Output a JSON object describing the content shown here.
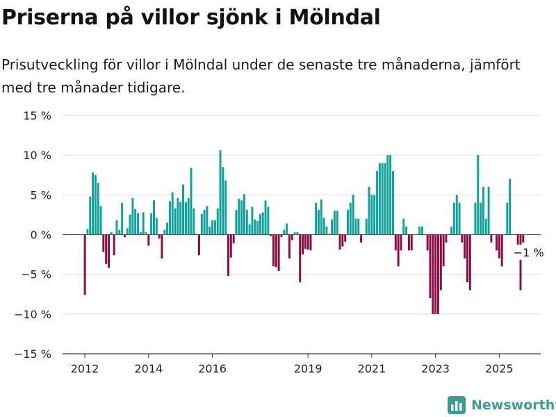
{
  "title": "Priserna på villor sjönk i Mölndal",
  "subtitle": "Prisutveckling för villor i Mölndal under de senaste tre månaderna, jämfört med tre månader tidigare.",
  "brand": {
    "name": "Newsworthy",
    "icon": "newsworthy-logo-icon"
  },
  "colors": {
    "positive": "#0fa19b",
    "negative": "#8e0b44",
    "grid": "#dddddd",
    "axis": "#333333"
  },
  "chart_data": {
    "type": "bar",
    "grid": true,
    "ylim": [
      -15,
      15
    ],
    "yticks": [
      15,
      10,
      5,
      0,
      -5,
      -10,
      -15
    ],
    "ytick_labels": [
      "15 %",
      "10 %",
      "5 %",
      "0 %",
      "−5 %",
      "−10 %",
      "−15 %"
    ],
    "xlim": [
      2011.3,
      2026.3
    ],
    "xticks": [
      2012,
      2014,
      2016,
      2019,
      2021,
      2023,
      2025
    ],
    "xtick_labels": [
      "2012",
      "2014",
      "2016",
      "2019",
      "2021",
      "2023",
      "2025"
    ],
    "annotation": {
      "text": "−1 %",
      "x": 2025.75,
      "y": -1
    },
    "series": [
      {
        "x": 2012.0,
        "y": -7.6
      },
      {
        "x": 2012.083,
        "y": 0.7
      },
      {
        "x": 2012.167,
        "y": 4.8
      },
      {
        "x": 2012.25,
        "y": 7.8
      },
      {
        "x": 2012.333,
        "y": 7.5
      },
      {
        "x": 2012.417,
        "y": 6.5
      },
      {
        "x": 2012.5,
        "y": 3.6
      },
      {
        "x": 2012.583,
        "y": -2.2
      },
      {
        "x": 2012.667,
        "y": -3.7
      },
      {
        "x": 2012.75,
        "y": -4.2
      },
      {
        "x": 2012.833,
        "y": 0.3
      },
      {
        "x": 2012.917,
        "y": -2.6
      },
      {
        "x": 2013.0,
        "y": 1.8
      },
      {
        "x": 2013.083,
        "y": 0.6
      },
      {
        "x": 2013.167,
        "y": 4.0
      },
      {
        "x": 2013.25,
        "y": -0.3
      },
      {
        "x": 2013.333,
        "y": 0.8
      },
      {
        "x": 2013.417,
        "y": 2.5
      },
      {
        "x": 2013.5,
        "y": 4.6
      },
      {
        "x": 2013.583,
        "y": 3.2
      },
      {
        "x": 2013.667,
        "y": 2.7
      },
      {
        "x": 2013.75,
        "y": 0.3
      },
      {
        "x": 2013.833,
        "y": 2.8
      },
      {
        "x": 2013.917,
        "y": 0.3
      },
      {
        "x": 2014.0,
        "y": -1.4
      },
      {
        "x": 2014.083,
        "y": 2.7
      },
      {
        "x": 2014.167,
        "y": 4.3
      },
      {
        "x": 2014.25,
        "y": 2.1
      },
      {
        "x": 2014.333,
        "y": -0.5
      },
      {
        "x": 2014.417,
        "y": -3.0
      },
      {
        "x": 2014.5,
        "y": 0.6
      },
      {
        "x": 2014.583,
        "y": 1.5
      },
      {
        "x": 2014.667,
        "y": 4.2
      },
      {
        "x": 2014.75,
        "y": 5.3
      },
      {
        "x": 2014.833,
        "y": 3.3
      },
      {
        "x": 2014.917,
        "y": 4.6
      },
      {
        "x": 2015.0,
        "y": 4.1
      },
      {
        "x": 2015.083,
        "y": 6.3
      },
      {
        "x": 2015.167,
        "y": 4.1
      },
      {
        "x": 2015.25,
        "y": 4.6
      },
      {
        "x": 2015.333,
        "y": 8.4
      },
      {
        "x": 2015.417,
        "y": 3.3
      },
      {
        "x": 2015.5,
        "y": 0.1
      },
      {
        "x": 2015.583,
        "y": -2.6
      },
      {
        "x": 2015.667,
        "y": 2.6
      },
      {
        "x": 2015.75,
        "y": 3.1
      },
      {
        "x": 2015.833,
        "y": 3.6
      },
      {
        "x": 2015.917,
        "y": 1.0
      },
      {
        "x": 2016.0,
        "y": 1.8
      },
      {
        "x": 2016.083,
        "y": 1.8
      },
      {
        "x": 2016.167,
        "y": 3.3
      },
      {
        "x": 2016.25,
        "y": 10.6
      },
      {
        "x": 2016.333,
        "y": 8.5
      },
      {
        "x": 2016.417,
        "y": 6.8
      },
      {
        "x": 2016.5,
        "y": -5.2
      },
      {
        "x": 2016.583,
        "y": -2.9
      },
      {
        "x": 2016.667,
        "y": -1.1
      },
      {
        "x": 2016.75,
        "y": 3.1
      },
      {
        "x": 2016.833,
        "y": 4.5
      },
      {
        "x": 2016.917,
        "y": 4.3
      },
      {
        "x": 2017.0,
        "y": 5.1
      },
      {
        "x": 2017.083,
        "y": 3.1
      },
      {
        "x": 2017.167,
        "y": 1.3
      },
      {
        "x": 2017.25,
        "y": 3.5
      },
      {
        "x": 2017.333,
        "y": 1.9
      },
      {
        "x": 2017.417,
        "y": 1.7
      },
      {
        "x": 2017.5,
        "y": 2.6
      },
      {
        "x": 2017.583,
        "y": 2.8
      },
      {
        "x": 2017.667,
        "y": 4.3
      },
      {
        "x": 2017.75,
        "y": 3.5
      },
      {
        "x": 2017.833,
        "y": -0.2
      },
      {
        "x": 2017.917,
        "y": -4.0
      },
      {
        "x": 2018.0,
        "y": -4.1
      },
      {
        "x": 2018.083,
        "y": -4.6
      },
      {
        "x": 2018.167,
        "y": -0.3
      },
      {
        "x": 2018.25,
        "y": 0.6
      },
      {
        "x": 2018.333,
        "y": 1.4
      },
      {
        "x": 2018.417,
        "y": -3.0
      },
      {
        "x": 2018.5,
        "y": -0.7
      },
      {
        "x": 2018.583,
        "y": 0.3
      },
      {
        "x": 2018.667,
        "y": 0.3
      },
      {
        "x": 2018.75,
        "y": -6.0
      },
      {
        "x": 2018.833,
        "y": -2.5
      },
      {
        "x": 2018.917,
        "y": -1.8
      },
      {
        "x": 2019.0,
        "y": -1.9
      },
      {
        "x": 2019.083,
        "y": -2.0
      },
      {
        "x": 2019.25,
        "y": 4.0
      },
      {
        "x": 2019.333,
        "y": 3.1
      },
      {
        "x": 2019.417,
        "y": 4.4
      },
      {
        "x": 2019.5,
        "y": 2.1
      },
      {
        "x": 2019.583,
        "y": 1.0
      },
      {
        "x": 2019.667,
        "y": 0.1
      },
      {
        "x": 2019.75,
        "y": 1.9
      },
      {
        "x": 2019.833,
        "y": 3.0
      },
      {
        "x": 2019.917,
        "y": 3.0
      },
      {
        "x": 2020.0,
        "y": -1.9
      },
      {
        "x": 2020.083,
        "y": -1.5
      },
      {
        "x": 2020.167,
        "y": -0.9
      },
      {
        "x": 2020.25,
        "y": 3.1
      },
      {
        "x": 2020.333,
        "y": 4.0
      },
      {
        "x": 2020.417,
        "y": 5.0
      },
      {
        "x": 2020.5,
        "y": 2.0
      },
      {
        "x": 2020.583,
        "y": 2.0
      },
      {
        "x": 2020.667,
        "y": -1.0
      },
      {
        "x": 2020.833,
        "y": 2.0
      },
      {
        "x": 2020.917,
        "y": 6.0
      },
      {
        "x": 2021.0,
        "y": 5.0
      },
      {
        "x": 2021.083,
        "y": 5.0
      },
      {
        "x": 2021.167,
        "y": 8.0
      },
      {
        "x": 2021.25,
        "y": 9.0
      },
      {
        "x": 2021.333,
        "y": 9.0
      },
      {
        "x": 2021.417,
        "y": 9.0
      },
      {
        "x": 2021.5,
        "y": 10.0
      },
      {
        "x": 2021.583,
        "y": 10.0
      },
      {
        "x": 2021.667,
        "y": 8.0
      },
      {
        "x": 2021.75,
        "y": -2.0
      },
      {
        "x": 2021.833,
        "y": -4.0
      },
      {
        "x": 2021.917,
        "y": -2.0
      },
      {
        "x": 2022.0,
        "y": 2.0
      },
      {
        "x": 2022.083,
        "y": 1.0
      },
      {
        "x": 2022.167,
        "y": -2.0
      },
      {
        "x": 2022.25,
        "y": -2.0
      },
      {
        "x": 2022.5,
        "y": 1.0
      },
      {
        "x": 2022.583,
        "y": 1.0
      },
      {
        "x": 2022.75,
        "y": -2.0
      },
      {
        "x": 2022.833,
        "y": -8.0
      },
      {
        "x": 2022.917,
        "y": -10.0
      },
      {
        "x": 2023.0,
        "y": -10.0
      },
      {
        "x": 2023.083,
        "y": -10.0
      },
      {
        "x": 2023.167,
        "y": -7.0
      },
      {
        "x": 2023.25,
        "y": -4.0
      },
      {
        "x": 2023.333,
        "y": -1.0
      },
      {
        "x": 2023.5,
        "y": 1.0
      },
      {
        "x": 2023.583,
        "y": 4.0
      },
      {
        "x": 2023.667,
        "y": 5.0
      },
      {
        "x": 2023.75,
        "y": 4.0
      },
      {
        "x": 2023.833,
        "y": -1.0
      },
      {
        "x": 2023.917,
        "y": -3.0
      },
      {
        "x": 2024.0,
        "y": -6.0
      },
      {
        "x": 2024.083,
        "y": -7.0
      },
      {
        "x": 2024.25,
        "y": 4.0
      },
      {
        "x": 2024.333,
        "y": 10.0
      },
      {
        "x": 2024.417,
        "y": 4.0
      },
      {
        "x": 2024.5,
        "y": 6.0
      },
      {
        "x": 2024.583,
        "y": 2.0
      },
      {
        "x": 2024.667,
        "y": 6.0
      },
      {
        "x": 2024.75,
        "y": -1.0
      },
      {
        "x": 2024.917,
        "y": -2.0
      },
      {
        "x": 2025.0,
        "y": -3.0
      },
      {
        "x": 2025.083,
        "y": -4.0
      },
      {
        "x": 2025.25,
        "y": 4.0
      },
      {
        "x": 2025.333,
        "y": 7.0
      },
      {
        "x": 2025.583,
        "y": -2.0
      },
      {
        "x": 2025.667,
        "y": -7.0
      },
      {
        "x": 2025.75,
        "y": -1.0
      }
    ]
  }
}
